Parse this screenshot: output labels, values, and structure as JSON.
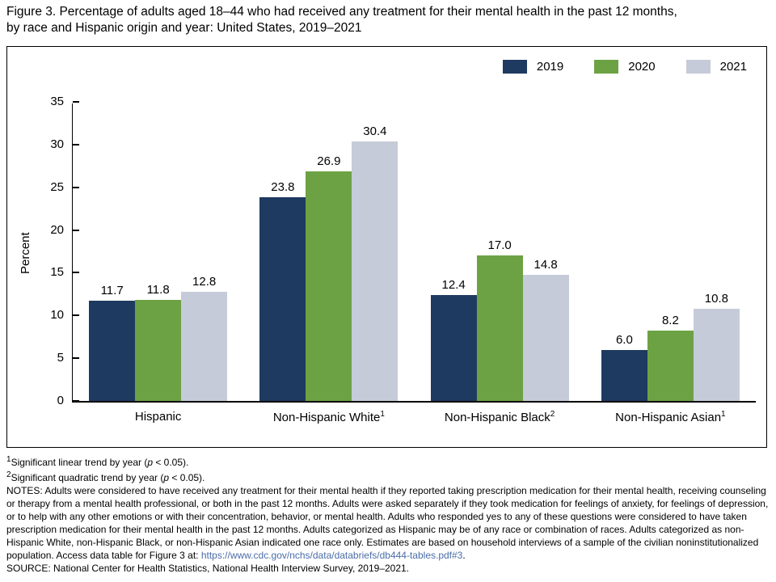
{
  "title": {
    "line1": "Figure 3. Percentage of adults aged 18–44 who had received any treatment for their mental health in the past 12 months,",
    "line2": "by race and Hispanic origin and year: United States, 2019–2021"
  },
  "chart_data": {
    "type": "bar",
    "categories": [
      {
        "label": "Hispanic",
        "sup": ""
      },
      {
        "label": "Non-Hispanic White",
        "sup": "1"
      },
      {
        "label": "Non-Hispanic Black",
        "sup": "2"
      },
      {
        "label": "Non-Hispanic Asian",
        "sup": "1"
      }
    ],
    "series": [
      {
        "name": "2019",
        "color": "#1F3A60",
        "values": [
          11.7,
          23.8,
          12.4,
          6.0
        ]
      },
      {
        "name": "2020",
        "color": "#6CA244",
        "values": [
          11.8,
          26.9,
          17.0,
          8.2
        ]
      },
      {
        "name": "2021",
        "color": "#C6CBD9",
        "values": [
          12.8,
          30.4,
          14.8,
          10.8
        ]
      }
    ],
    "title": "Percentage of adults aged 18–44 who had received any treatment for their mental health in the past 12 months, by race and Hispanic origin and year: United States, 2019–2021",
    "xlabel": "",
    "ylabel": "Percent",
    "ylim": [
      0,
      35
    ],
    "yticks": [
      0,
      5,
      10,
      15,
      20,
      25,
      30,
      35
    ],
    "grid": false,
    "legend_position": "top-right",
    "value_labels": true
  },
  "footnotes": [
    {
      "sup": "1",
      "pre": "Significant linear trend by year (",
      "italic": "p",
      "post": " < 0.05)."
    },
    {
      "sup": "2",
      "pre": "Significant quadratic trend by year (",
      "italic": "p",
      "post": " < 0.05)."
    }
  ],
  "notes": {
    "text": "NOTES: Adults were considered to have received any treatment for their mental health if they reported taking prescription medication for their mental health, receiving counseling or therapy from a mental health professional, or both in the past 12 months. Adults were asked separately if they took medication for feelings of anxiety, for feelings of depression, or to help with any other emotions or with their concentration, behavior, or mental health. Adults who responded yes to any of these questions were considered to have taken prescription medication for their mental health in the past 12 months. Adults categorized as Hispanic may be of any race or combination of races. Adults categorized as non-Hispanic White, non-Hispanic Black, or non-Hispanic Asian indicated one race only. Estimates are based on household interviews of a sample of the civilian noninstitutionalized population. Access data table for Figure 3 at: ",
    "link": "https://www.cdc.gov/nchs/data/databriefs/db444-tables.pdf#3",
    "after_link": "."
  },
  "source": "SOURCE: National Center for Health Statistics, National Health Interview Survey, 2019–2021.",
  "colors": {
    "link": "#4A6DA7",
    "axis": "#000000"
  }
}
